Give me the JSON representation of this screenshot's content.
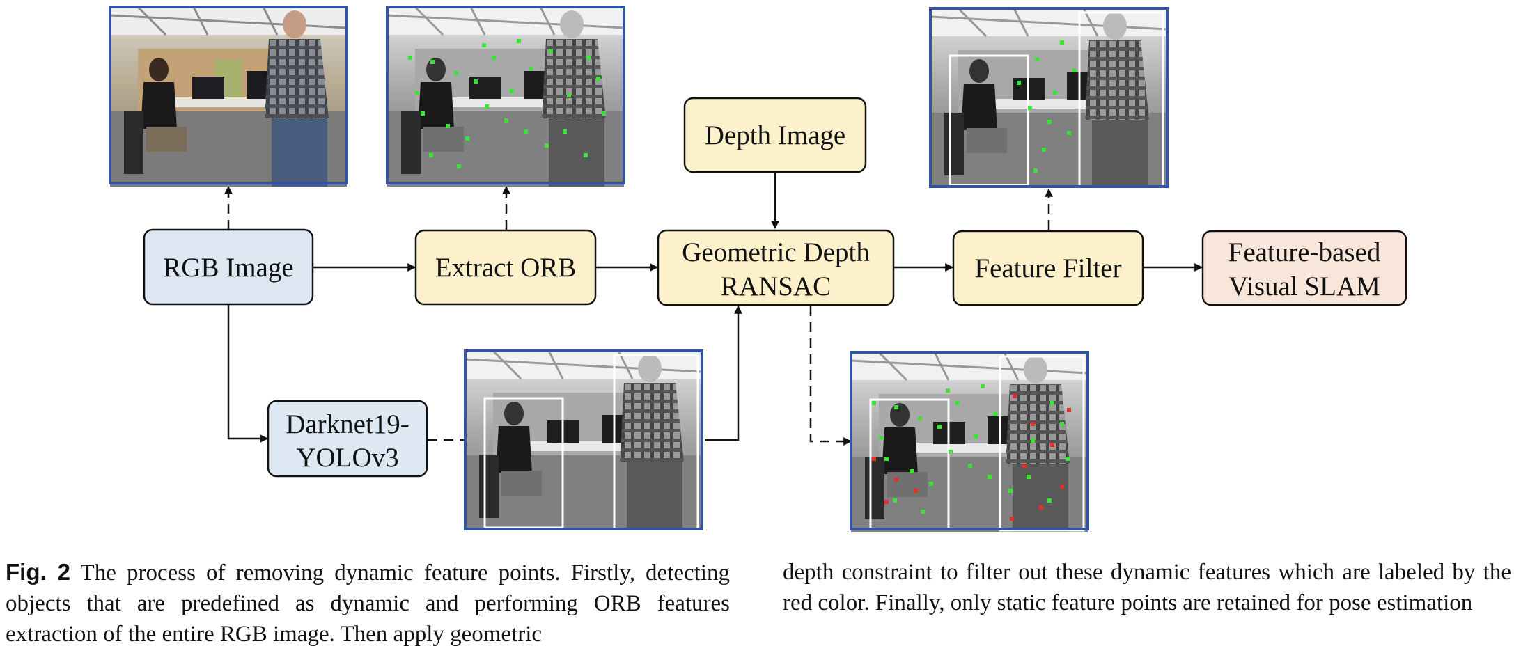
{
  "nodes": {
    "rgb": "RGB Image",
    "orb": "Extract ORB",
    "geo_line1": "Geometric Depth",
    "geo_line2": "RANSAC",
    "depth": "Depth Image",
    "filter": "Feature Filter",
    "slam_line1": "Feature-based",
    "slam_line2": "Visual SLAM",
    "darknet_line1": "Darknet19-",
    "darknet_line2": "YOLOv3"
  },
  "colors": {
    "blue_box": "#dde8f3",
    "yellow_box": "#fdf1cc",
    "peach_box": "#f8e6da",
    "image_border": "#3355a0",
    "dynamic_point": "#e0302a",
    "static_point": "#3ee03a"
  },
  "caption": {
    "label": "Fig. 2",
    "left_text": "The process of removing dynamic feature points. Firstly, detecting objects that are predefined as dynamic and performing ORB features extraction of the entire RGB image. Then apply geometric",
    "right_text": "depth constraint to filter out these dynamic features which are labeled by the red color. Finally, only static feature points are retained for pose estimation"
  }
}
